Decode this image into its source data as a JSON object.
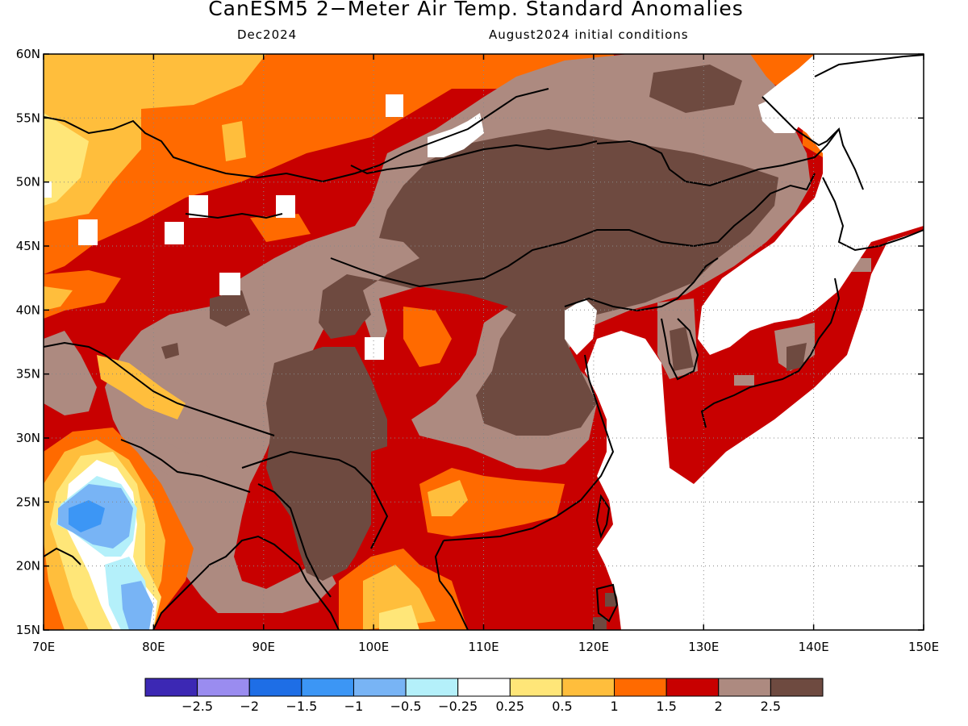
{
  "title": "CanESM5 2−Meter Air Temp. Standard Anomalies",
  "subtitle_left": "Dec2024",
  "subtitle_right": "August2024 initial conditions",
  "map_extent": {
    "lon_min": 70,
    "lon_max": 150,
    "lat_min": 15,
    "lat_max": 60
  },
  "lat_ticks": [
    "15N",
    "20N",
    "25N",
    "30N",
    "35N",
    "40N",
    "45N",
    "50N",
    "55N",
    "60N"
  ],
  "lon_ticks": [
    "70E",
    "80E",
    "90E",
    "100E",
    "110E",
    "120E",
    "130E",
    "140E",
    "150E"
  ],
  "colorbar": {
    "colors": [
      "#3c28b4",
      "#9a8cf0",
      "#1e6ee6",
      "#3c96f5",
      "#78b4f5",
      "#b4f0fa",
      "#ffffff",
      "#ffe678",
      "#ffbe3c",
      "#ff6a00",
      "#c80000",
      "#ad8a80",
      "#6e4a40"
    ],
    "labels": [
      "−2.5",
      "−2",
      "−1.5",
      "−1",
      "−0.5",
      "−0.25",
      "0.25",
      "0.5",
      "1",
      "1.5",
      "2",
      "2.5"
    ]
  }
}
